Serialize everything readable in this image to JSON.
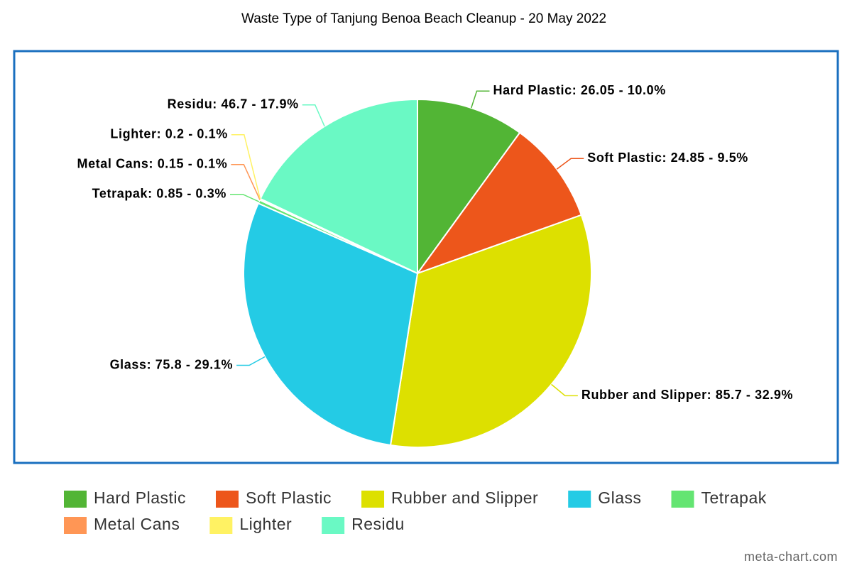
{
  "chart_data": {
    "type": "pie",
    "title": "Waste Type of Tanjung Benoa Beach Cleanup - 20 May 2022",
    "categories": [
      "Hard Plastic",
      "Soft Plastic",
      "Rubber and Slipper",
      "Glass",
      "Tetrapak",
      "Metal Cans",
      "Lighter",
      "Residu"
    ],
    "values": [
      26.05,
      24.85,
      85.7,
      75.8,
      0.85,
      0.15,
      0.2,
      46.7
    ],
    "value_labels": [
      "Hard Plastic: 26.05 - 10.0%",
      "Soft Plastic: 24.85 - 9.5%",
      "Rubber and Slipper: 85.7 - 32.9%",
      "Glass: 75.8 - 29.1%",
      "Tetrapak: 0.85 - 0.3%",
      "Metal Cans: 0.15 - 0.1%",
      "Lighter: 0.2 - 0.1%",
      "Residu: 46.7 - 17.9%"
    ],
    "colors": [
      "#52b535",
      "#ed561b",
      "#dde000",
      "#24cbe5",
      "#64e572",
      "#ff9655",
      "#fff263",
      "#6af9c4"
    ],
    "legend": "bottom",
    "source": "meta-chart.com"
  }
}
